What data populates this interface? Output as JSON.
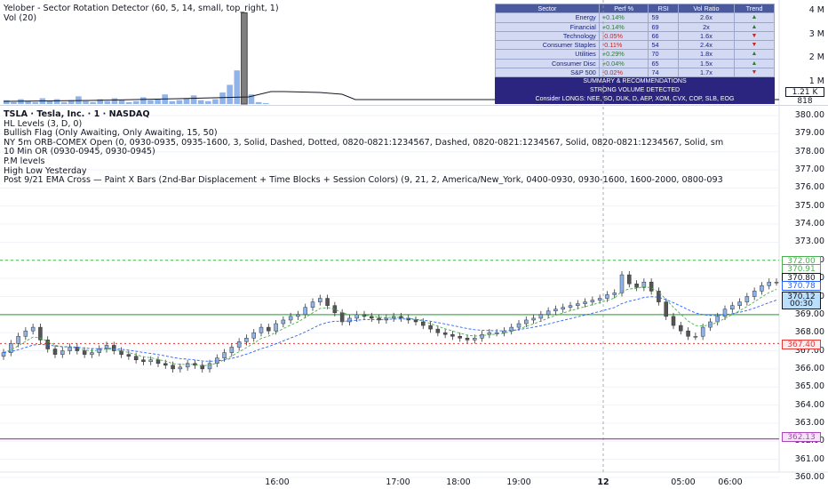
{
  "volume_pane": {
    "title": "Yelober - Sector Rotation Detector (60, 5, 14, small, top_right, 1)",
    "subtitle": "Vol (20)",
    "axis_labels": [
      "4 M",
      "3 M",
      "2 M",
      "1 M"
    ],
    "current_tag": "1.21 K",
    "ma_tag": "818"
  },
  "sector_table": {
    "headers": [
      "Sector",
      "Perf %",
      "RSI",
      "Vol Ratio",
      "Trend"
    ],
    "rows": [
      {
        "sector": "Energy",
        "perf": "+0.14%",
        "rsi": "59",
        "vol": "2.6x",
        "trend": "up"
      },
      {
        "sector": "Financial",
        "perf": "+0.14%",
        "rsi": "69",
        "vol": "2x",
        "trend": "up"
      },
      {
        "sector": "Technology",
        "perf": "-0.05%",
        "rsi": "66",
        "vol": "1.6x",
        "trend": "down"
      },
      {
        "sector": "Consumer Staples",
        "perf": "-0.11%",
        "rsi": "54",
        "vol": "2.4x",
        "trend": "down"
      },
      {
        "sector": "Utilities",
        "perf": "+0.29%",
        "rsi": "70",
        "vol": "1.8x",
        "trend": "up"
      },
      {
        "sector": "Consumer Disc",
        "perf": "+0.04%",
        "rsi": "65",
        "vol": "1.5x",
        "trend": "up"
      },
      {
        "sector": "S&P 500",
        "perf": "-0.02%",
        "rsi": "74",
        "vol": "1.7x",
        "trend": "down"
      }
    ],
    "summary_title": "SUMMARY & RECOMMENDATIONS",
    "summary_alert": "STRONG VOLUME DETECTED",
    "summary_longs": "Consider LONGS: NEE, SO, DUK, D, AEP, XOM, CVX, COP, SLB, EOG"
  },
  "indicators": [
    "TSLA · Tesla, Inc. · 1 · NASDAQ",
    "HL Levels (3, D, 0)",
    "Bullish Flag (Only Awaiting, Only Awaiting, 15, 50)",
    "NY 5m ORB-COMEX Open (0, 0930-0935, 0935-1600, 3, Solid, Dashed, Dotted, 0820-0821:1234567, Dashed, 0820-0821:1234567, Solid, 0820-0821:1234567, Solid, sm",
    "10 Min OR (0930-0945, 0930-0945)",
    "P.M levels",
    "High Low Yesterday",
    "Post 9/21 EMA Cross — Paint X Bars (2nd-Bar Displacement + Time Blocks + Session Colors) (9, 21, 2, America/New_York, 0400-0930, 0930-1600, 1600-2000, 0800-093"
  ],
  "price_axis": [
    "380.00",
    "379.00",
    "378.00",
    "377.00",
    "376.00",
    "375.00",
    "374.00",
    "373.00",
    "372.00",
    "371.00",
    "370.00",
    "369.00",
    "368.00",
    "367.00",
    "366.00",
    "365.00",
    "364.00",
    "363.00",
    "362.00",
    "361.00",
    "360.00"
  ],
  "price_tags": [
    {
      "value": "372.00",
      "color": "#4caf50"
    },
    {
      "value": "370.91",
      "color": "#4caf50"
    },
    {
      "value": "370.80",
      "color": "#131722"
    },
    {
      "value": "370.78",
      "color": "#2962ff"
    },
    {
      "value": "370.12",
      "color": "#131722"
    },
    {
      "value": "00:30",
      "color": "#131722"
    },
    {
      "value": "367.40",
      "color": "#e53935"
    },
    {
      "value": "362.13",
      "color": "#ab47bc"
    }
  ],
  "time_axis": [
    "16:00",
    "17:00",
    "18:00",
    "19:00",
    "12",
    "05:00",
    "06:00"
  ],
  "chart_data": {
    "type": "candlestick",
    "levels": {
      "green_dashed": 372.0,
      "green_solid": 369.0,
      "red_dotted": 367.4,
      "purple_solid": 362.13
    },
    "ylim": [
      360,
      380.5
    ],
    "close_path": [
      366.9,
      367.4,
      367.8,
      368.1,
      368.3,
      367.6,
      367.1,
      366.8,
      367.0,
      367.2,
      367.0,
      366.8,
      366.9,
      367.1,
      367.3,
      367.0,
      366.8,
      366.7,
      366.5,
      366.4,
      366.5,
      366.3,
      366.2,
      366.0,
      366.1,
      366.3,
      366.2,
      366.0,
      366.3,
      366.6,
      366.9,
      367.2,
      367.5,
      367.7,
      368.0,
      368.3,
      368.1,
      368.5,
      368.7,
      368.9,
      369.0,
      369.4,
      369.7,
      369.9,
      369.5,
      369.1,
      368.6,
      368.8,
      369.0,
      368.9,
      368.8,
      368.7,
      368.8,
      368.9,
      368.8,
      368.7,
      368.6,
      368.4,
      368.2,
      368.0,
      367.9,
      367.8,
      367.7,
      367.6,
      367.7,
      367.9,
      368.0,
      368.0,
      368.1,
      368.3,
      368.5,
      368.7,
      368.8,
      369.0,
      369.2,
      369.3,
      369.4,
      369.5,
      369.6,
      369.7,
      369.8,
      369.9,
      370.1,
      370.2,
      371.2,
      370.7,
      370.5,
      370.8,
      370.3,
      369.7,
      368.9,
      368.4,
      368.1,
      367.8,
      367.8,
      368.3,
      368.6,
      368.9,
      369.3,
      369.5,
      369.7,
      370.0,
      370.3,
      370.6,
      370.8,
      370.8
    ],
    "volume_bars": [
      0.04,
      0.02,
      0.05,
      0.03,
      0.02,
      0.06,
      0.03,
      0.05,
      0.02,
      0.04,
      0.08,
      0.03,
      0.02,
      0.05,
      0.03,
      0.06,
      0.04,
      0.02,
      0.03,
      0.07,
      0.04,
      0.05,
      0.1,
      0.03,
      0.04,
      0.06,
      0.09,
      0.04,
      0.03,
      0.05,
      0.12,
      0.2,
      0.35,
      0.95,
      0.1,
      0.02,
      0.01
    ]
  }
}
